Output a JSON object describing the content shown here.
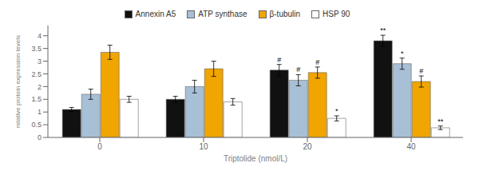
{
  "chart_data": {
    "type": "bar",
    "xlabel": "Triptolide (nmol/L)",
    "ylabel": "relative protein expression levels",
    "categories": [
      "0",
      "10",
      "20",
      "40"
    ],
    "series": [
      {
        "name": "Annexin A5",
        "color": "#111111",
        "values": [
          1.1,
          1.5,
          2.65,
          3.8
        ],
        "errors": [
          0.08,
          0.12,
          0.22,
          0.22
        ]
      },
      {
        "name": "ATP synthase",
        "color": "#a8c0d6",
        "values": [
          1.7,
          2.0,
          2.25,
          2.9
        ],
        "errors": [
          0.2,
          0.25,
          0.22,
          0.22
        ]
      },
      {
        "name": "β-tubulin",
        "color": "#f0a500",
        "values": [
          3.35,
          2.7,
          2.55,
          2.2
        ],
        "errors": [
          0.28,
          0.3,
          0.22,
          0.22
        ]
      },
      {
        "name": "HSP 90",
        "color": "#ffffff",
        "values": [
          1.5,
          1.4,
          0.75,
          0.38
        ],
        "errors": [
          0.12,
          0.13,
          0.1,
          0.07
        ]
      }
    ],
    "annotations": [
      {
        "category": "20",
        "series": "Annexin A5",
        "text": "#"
      },
      {
        "category": "20",
        "series": "ATP synthase",
        "text": "#"
      },
      {
        "category": "20",
        "series": "β-tubulin",
        "text": "#"
      },
      {
        "category": "20",
        "series": "HSP 90",
        "text": "*"
      },
      {
        "category": "40",
        "series": "Annexin A5",
        "text": "**"
      },
      {
        "category": "40",
        "series": "ATP synthase",
        "text": "*"
      },
      {
        "category": "40",
        "series": "β-tubulin",
        "text": "#"
      },
      {
        "category": "40",
        "series": "HSP 90",
        "text": "**"
      }
    ],
    "ylim": [
      0,
      4.4
    ],
    "yticks": [
      0,
      0.5,
      1,
      1.5,
      2,
      2.5,
      3,
      3.5,
      4
    ],
    "grid": false,
    "legend": "top"
  }
}
